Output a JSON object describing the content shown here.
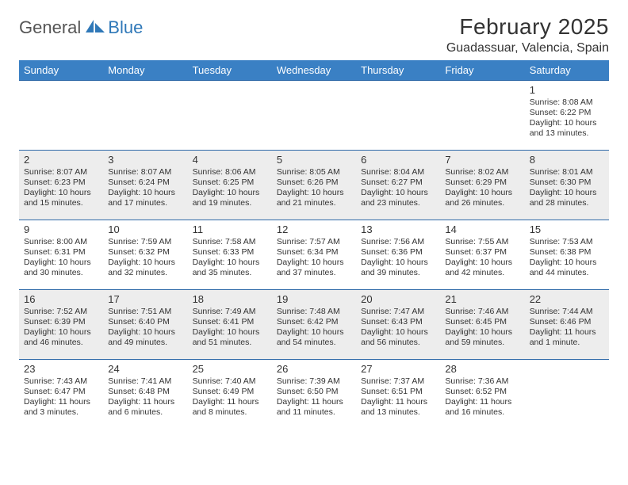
{
  "brand": {
    "part1": "General",
    "part2": "Blue"
  },
  "title": "February 2025",
  "location": "Guadassuar, Valencia, Spain",
  "colors": {
    "header_bg": "#3a80c4",
    "header_text": "#ffffff",
    "row_border": "#2f6aa8",
    "shaded_row_bg": "#ededed",
    "body_text": "#333333",
    "brand_accent": "#2f78b8"
  },
  "calendar": {
    "day_headers": [
      "Sunday",
      "Monday",
      "Tuesday",
      "Wednesday",
      "Thursday",
      "Friday",
      "Saturday"
    ],
    "weeks": [
      {
        "shaded": false,
        "days": [
          null,
          null,
          null,
          null,
          null,
          null,
          {
            "n": "1",
            "sunrise": "Sunrise: 8:08 AM",
            "sunset": "Sunset: 6:22 PM",
            "daylight": "Daylight: 10 hours and 13 minutes."
          }
        ]
      },
      {
        "shaded": true,
        "days": [
          {
            "n": "2",
            "sunrise": "Sunrise: 8:07 AM",
            "sunset": "Sunset: 6:23 PM",
            "daylight": "Daylight: 10 hours and 15 minutes."
          },
          {
            "n": "3",
            "sunrise": "Sunrise: 8:07 AM",
            "sunset": "Sunset: 6:24 PM",
            "daylight": "Daylight: 10 hours and 17 minutes."
          },
          {
            "n": "4",
            "sunrise": "Sunrise: 8:06 AM",
            "sunset": "Sunset: 6:25 PM",
            "daylight": "Daylight: 10 hours and 19 minutes."
          },
          {
            "n": "5",
            "sunrise": "Sunrise: 8:05 AM",
            "sunset": "Sunset: 6:26 PM",
            "daylight": "Daylight: 10 hours and 21 minutes."
          },
          {
            "n": "6",
            "sunrise": "Sunrise: 8:04 AM",
            "sunset": "Sunset: 6:27 PM",
            "daylight": "Daylight: 10 hours and 23 minutes."
          },
          {
            "n": "7",
            "sunrise": "Sunrise: 8:02 AM",
            "sunset": "Sunset: 6:29 PM",
            "daylight": "Daylight: 10 hours and 26 minutes."
          },
          {
            "n": "8",
            "sunrise": "Sunrise: 8:01 AM",
            "sunset": "Sunset: 6:30 PM",
            "daylight": "Daylight: 10 hours and 28 minutes."
          }
        ]
      },
      {
        "shaded": false,
        "days": [
          {
            "n": "9",
            "sunrise": "Sunrise: 8:00 AM",
            "sunset": "Sunset: 6:31 PM",
            "daylight": "Daylight: 10 hours and 30 minutes."
          },
          {
            "n": "10",
            "sunrise": "Sunrise: 7:59 AM",
            "sunset": "Sunset: 6:32 PM",
            "daylight": "Daylight: 10 hours and 32 minutes."
          },
          {
            "n": "11",
            "sunrise": "Sunrise: 7:58 AM",
            "sunset": "Sunset: 6:33 PM",
            "daylight": "Daylight: 10 hours and 35 minutes."
          },
          {
            "n": "12",
            "sunrise": "Sunrise: 7:57 AM",
            "sunset": "Sunset: 6:34 PM",
            "daylight": "Daylight: 10 hours and 37 minutes."
          },
          {
            "n": "13",
            "sunrise": "Sunrise: 7:56 AM",
            "sunset": "Sunset: 6:36 PM",
            "daylight": "Daylight: 10 hours and 39 minutes."
          },
          {
            "n": "14",
            "sunrise": "Sunrise: 7:55 AM",
            "sunset": "Sunset: 6:37 PM",
            "daylight": "Daylight: 10 hours and 42 minutes."
          },
          {
            "n": "15",
            "sunrise": "Sunrise: 7:53 AM",
            "sunset": "Sunset: 6:38 PM",
            "daylight": "Daylight: 10 hours and 44 minutes."
          }
        ]
      },
      {
        "shaded": true,
        "days": [
          {
            "n": "16",
            "sunrise": "Sunrise: 7:52 AM",
            "sunset": "Sunset: 6:39 PM",
            "daylight": "Daylight: 10 hours and 46 minutes."
          },
          {
            "n": "17",
            "sunrise": "Sunrise: 7:51 AM",
            "sunset": "Sunset: 6:40 PM",
            "daylight": "Daylight: 10 hours and 49 minutes."
          },
          {
            "n": "18",
            "sunrise": "Sunrise: 7:49 AM",
            "sunset": "Sunset: 6:41 PM",
            "daylight": "Daylight: 10 hours and 51 minutes."
          },
          {
            "n": "19",
            "sunrise": "Sunrise: 7:48 AM",
            "sunset": "Sunset: 6:42 PM",
            "daylight": "Daylight: 10 hours and 54 minutes."
          },
          {
            "n": "20",
            "sunrise": "Sunrise: 7:47 AM",
            "sunset": "Sunset: 6:43 PM",
            "daylight": "Daylight: 10 hours and 56 minutes."
          },
          {
            "n": "21",
            "sunrise": "Sunrise: 7:46 AM",
            "sunset": "Sunset: 6:45 PM",
            "daylight": "Daylight: 10 hours and 59 minutes."
          },
          {
            "n": "22",
            "sunrise": "Sunrise: 7:44 AM",
            "sunset": "Sunset: 6:46 PM",
            "daylight": "Daylight: 11 hours and 1 minute."
          }
        ]
      },
      {
        "shaded": false,
        "days": [
          {
            "n": "23",
            "sunrise": "Sunrise: 7:43 AM",
            "sunset": "Sunset: 6:47 PM",
            "daylight": "Daylight: 11 hours and 3 minutes."
          },
          {
            "n": "24",
            "sunrise": "Sunrise: 7:41 AM",
            "sunset": "Sunset: 6:48 PM",
            "daylight": "Daylight: 11 hours and 6 minutes."
          },
          {
            "n": "25",
            "sunrise": "Sunrise: 7:40 AM",
            "sunset": "Sunset: 6:49 PM",
            "daylight": "Daylight: 11 hours and 8 minutes."
          },
          {
            "n": "26",
            "sunrise": "Sunrise: 7:39 AM",
            "sunset": "Sunset: 6:50 PM",
            "daylight": "Daylight: 11 hours and 11 minutes."
          },
          {
            "n": "27",
            "sunrise": "Sunrise: 7:37 AM",
            "sunset": "Sunset: 6:51 PM",
            "daylight": "Daylight: 11 hours and 13 minutes."
          },
          {
            "n": "28",
            "sunrise": "Sunrise: 7:36 AM",
            "sunset": "Sunset: 6:52 PM",
            "daylight": "Daylight: 11 hours and 16 minutes."
          },
          null
        ]
      }
    ]
  }
}
